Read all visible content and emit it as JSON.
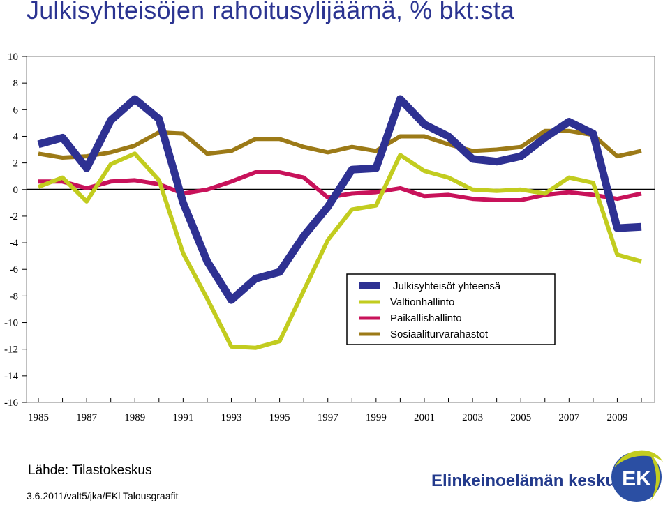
{
  "title": "Julkisyhteisöjen rahoitusylijäämä, % bkt:sta",
  "source": "Lähde: Tilastokeskus",
  "footnote": "3.6.2011/valt5/jka/EKl Talousgraafit",
  "org": {
    "name": "Elinkeinoelämän keskusliitto",
    "logo_text": "EK"
  },
  "chart_data": {
    "type": "line",
    "x": [
      1985,
      1986,
      1987,
      1988,
      1989,
      1990,
      1991,
      1992,
      1993,
      1994,
      1995,
      1996,
      1997,
      1998,
      1999,
      2000,
      2001,
      2002,
      2003,
      2004,
      2005,
      2006,
      2007,
      2008,
      2009,
      2010
    ],
    "x_tick_labels": [
      "1985",
      "1987",
      "1989",
      "1991",
      "1993",
      "1995",
      "1997",
      "1999",
      "2001",
      "2003",
      "2005",
      "2007",
      "2009"
    ],
    "ylim": [
      -16,
      10
    ],
    "y_tick_labels": [
      "10",
      "8",
      "6",
      "4",
      "2",
      "0",
      "-2",
      "-4",
      "-6",
      "-8",
      "-10",
      "-12",
      "-14",
      "-16"
    ],
    "grid": false,
    "legend_position": "lower-right",
    "series": [
      {
        "name": "Julkisyhteisöt yhteensä",
        "color": "#2e3192",
        "values": [
          3.4,
          3.9,
          1.6,
          5.2,
          6.8,
          5.3,
          -1.0,
          -5.4,
          -8.3,
          -6.7,
          -6.2,
          -3.5,
          -1.3,
          1.5,
          1.6,
          6.8,
          4.9,
          4.0,
          2.3,
          2.1,
          2.5,
          3.9,
          5.1,
          4.2,
          -2.9,
          -2.8
        ]
      },
      {
        "name": "Valtionhallinto",
        "color": "#c2cc1f",
        "values": [
          0.2,
          0.9,
          -0.9,
          1.9,
          2.7,
          0.7,
          -4.8,
          -8.2,
          -11.8,
          -11.9,
          -11.4,
          -7.6,
          -3.8,
          -1.5,
          -1.2,
          2.6,
          1.4,
          0.9,
          0.0,
          -0.1,
          0.0,
          -0.3,
          0.9,
          0.5,
          -4.9,
          -5.4
        ]
      },
      {
        "name": "Paikallishallinto",
        "color": "#c8125a",
        "values": [
          0.6,
          0.6,
          0.1,
          0.6,
          0.7,
          0.4,
          -0.3,
          0.0,
          0.6,
          1.3,
          1.3,
          0.9,
          -0.6,
          -0.3,
          -0.2,
          0.1,
          -0.5,
          -0.4,
          -0.7,
          -0.8,
          -0.8,
          -0.4,
          -0.2,
          -0.4,
          -0.7,
          -0.3
        ]
      },
      {
        "name": "Sosiaaliturvarahastot",
        "color": "#9c7a17",
        "values": [
          2.7,
          2.4,
          2.5,
          2.8,
          3.3,
          4.3,
          4.2,
          2.7,
          2.9,
          3.8,
          3.8,
          3.2,
          2.8,
          3.2,
          2.9,
          4.0,
          4.0,
          3.4,
          2.9,
          3.0,
          3.2,
          4.4,
          4.4,
          4.1,
          2.5,
          2.9
        ]
      }
    ]
  }
}
